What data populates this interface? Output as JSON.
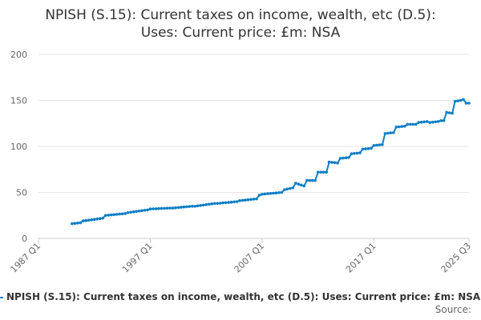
{
  "chart_data": {
    "type": "line",
    "title_lines": [
      "NPISH (S.15): Current taxes on income, wealth, etc (D.5):",
      "Uses: Current price: £m: NSA"
    ],
    "x_tick_labels": [
      "1987 Q1",
      "1997 Q1",
      "2007 Q1",
      "2017 Q1",
      "2025 Q3"
    ],
    "y_tick_labels": [
      "0",
      "50",
      "100",
      "150",
      "200"
    ],
    "ylim": [
      0,
      200
    ],
    "grid": true,
    "legend_position": "bottom",
    "series": [
      {
        "name": "NPISH (S.15): Current taxes on income, wealth, etc (D.5): Uses: Current price: £m: NSA",
        "color": "#0e7fc4",
        "anchors": [
          [
            "1990 Q1",
            16
          ],
          [
            "1990 Q4",
            17
          ],
          [
            "1991 Q1",
            19
          ],
          [
            "1992 Q4",
            22
          ],
          [
            "1993 Q1",
            25
          ],
          [
            "1994 Q4",
            27
          ],
          [
            "1995 Q1",
            28
          ],
          [
            "1996 Q4",
            31
          ],
          [
            "1997 Q1",
            32
          ],
          [
            "1998 Q4",
            33
          ],
          [
            "1999 Q1",
            33
          ],
          [
            "2000 Q4",
            35
          ],
          [
            "2001 Q1",
            35
          ],
          [
            "2002 Q4",
            38
          ],
          [
            "2003 Q1",
            38
          ],
          [
            "2004 Q4",
            40
          ],
          [
            "2005 Q1",
            41
          ],
          [
            "2006 Q3",
            43
          ],
          [
            "2006 Q4",
            47
          ],
          [
            "2007 Q1",
            48
          ],
          [
            "2008 Q4",
            50
          ],
          [
            "2009 Q1",
            53
          ],
          [
            "2009 Q4",
            55
          ],
          [
            "2010 Q1",
            60
          ],
          [
            "2010 Q4",
            57
          ],
          [
            "2011 Q1",
            63
          ],
          [
            "2011 Q4",
            63
          ],
          [
            "2012 Q1",
            72
          ],
          [
            "2012 Q4",
            72
          ],
          [
            "2013 Q1",
            83
          ],
          [
            "2013 Q4",
            82
          ],
          [
            "2014 Q1",
            87
          ],
          [
            "2014 Q4",
            88
          ],
          [
            "2015 Q1",
            92
          ],
          [
            "2015 Q4",
            93
          ],
          [
            "2016 Q1",
            97
          ],
          [
            "2016 Q4",
            98
          ],
          [
            "2017 Q1",
            101
          ],
          [
            "2017 Q4",
            102
          ],
          [
            "2018 Q1",
            114
          ],
          [
            "2018 Q4",
            115
          ],
          [
            "2019 Q1",
            121
          ],
          [
            "2019 Q4",
            122
          ],
          [
            "2020 Q1",
            124
          ],
          [
            "2020 Q4",
            124
          ],
          [
            "2021 Q1",
            126
          ],
          [
            "2021 Q4",
            127
          ],
          [
            "2022 Q1",
            126
          ],
          [
            "2022 Q4",
            127
          ],
          [
            "2023 Q1",
            128
          ],
          [
            "2023 Q2",
            128
          ],
          [
            "2023 Q3",
            137
          ],
          [
            "2024 Q1",
            136
          ],
          [
            "2024 Q2",
            149
          ],
          [
            "2024 Q4",
            150
          ],
          [
            "2025 Q1",
            151
          ],
          [
            "2025 Q2",
            147
          ],
          [
            "2025 Q3",
            147
          ]
        ]
      }
    ]
  },
  "source_label": "Source:"
}
